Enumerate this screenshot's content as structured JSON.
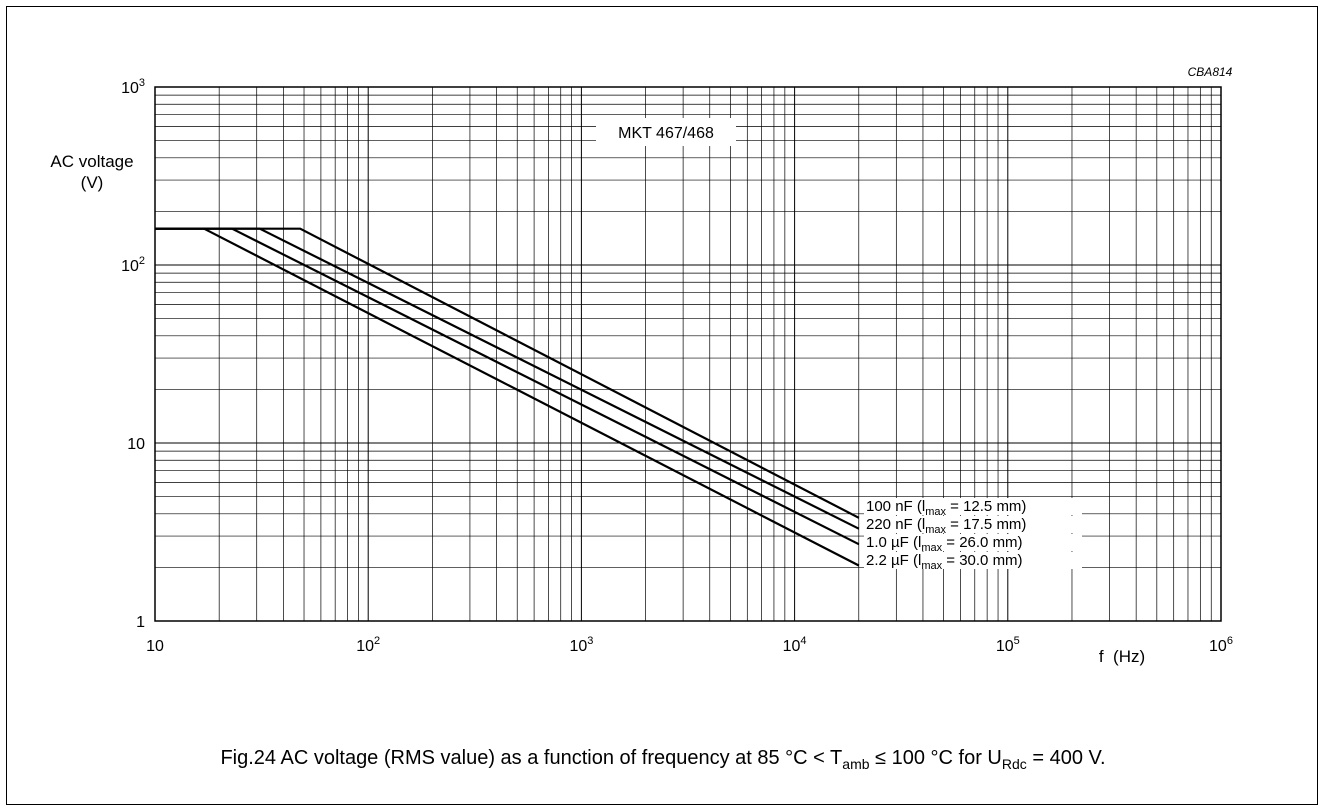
{
  "chart_data": {
    "type": "line",
    "figure_code": "CBA814",
    "product_label": "MKT 467/468",
    "x_axis": {
      "scale": "log",
      "range": [
        10,
        1000000
      ],
      "unit_label": "f  (Hz)",
      "tick_labels": [
        {
          "value": 10,
          "base": "10",
          "exp": ""
        },
        {
          "value": 100,
          "base": "10",
          "exp": "2"
        },
        {
          "value": 1000,
          "base": "10",
          "exp": "3"
        },
        {
          "value": 10000,
          "base": "10",
          "exp": "4"
        },
        {
          "value": 100000,
          "base": "10",
          "exp": "5"
        },
        {
          "value": 1000000,
          "base": "10",
          "exp": "6"
        }
      ]
    },
    "y_axis": {
      "scale": "log",
      "range": [
        1,
        1000
      ],
      "label_line1": "AC voltage",
      "label_line2": "(V)",
      "tick_labels": [
        {
          "value": 1,
          "base": "1",
          "exp": ""
        },
        {
          "value": 10,
          "base": "10",
          "exp": ""
        },
        {
          "value": 100,
          "base": "10",
          "exp": "2"
        },
        {
          "value": 1000,
          "base": "10",
          "exp": "3"
        }
      ]
    },
    "grid": true,
    "series": [
      {
        "name": "100 nF",
        "label_pre": "100 nF (l",
        "label_sub": "max",
        "label_post": " = 12.5 mm)",
        "points": [
          [
            10,
            160
          ],
          [
            48,
            160
          ],
          [
            20000,
            3.8
          ]
        ]
      },
      {
        "name": "220 nF",
        "label_pre": "220 nF (l",
        "label_sub": "max",
        "label_post": " = 17.5 mm)",
        "points": [
          [
            10,
            160
          ],
          [
            31,
            160
          ],
          [
            20000,
            3.3
          ]
        ]
      },
      {
        "name": "1.0 µF",
        "label_pre": "1.0 µF (l",
        "label_sub": "max",
        "label_post": " = 26.0 mm)",
        "points": [
          [
            10,
            160
          ],
          [
            23,
            160
          ],
          [
            20000,
            2.7
          ]
        ]
      },
      {
        "name": "2.2 µF",
        "label_pre": "2.2 µF (l",
        "label_sub": "max",
        "label_post": " = 30.0 mm)",
        "points": [
          [
            10,
            160
          ],
          [
            17,
            160
          ],
          [
            20000,
            2.05
          ]
        ]
      }
    ]
  },
  "caption": {
    "prefix": "Fig.24  AC voltage (RMS value) as a function of frequency at 85 °C < T",
    "sub1": "amb",
    "middle": " ≤ 100 °C for U",
    "sub2": "Rdc",
    "suffix": " = 400 V."
  }
}
